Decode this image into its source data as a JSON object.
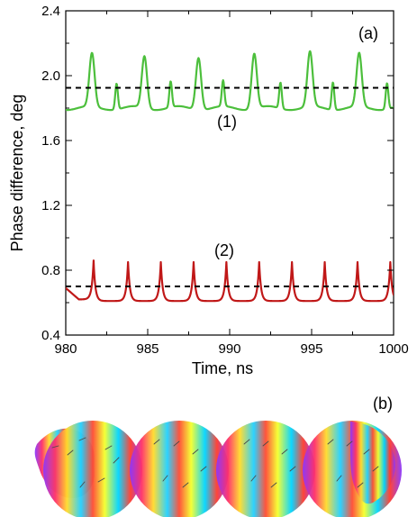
{
  "chart_data": {
    "type": "line",
    "panel_label": "(a)",
    "xlabel": "Time, ns",
    "ylabel": "Phase difference, deg",
    "xlim": [
      980,
      1000
    ],
    "ylim": [
      0.4,
      2.4
    ],
    "x_ticks": [
      980,
      985,
      990,
      995,
      1000
    ],
    "x_tick_labels": [
      "980",
      "985",
      "990",
      "995",
      "1000"
    ],
    "y_ticks": [
      0.4,
      0.8,
      1.2,
      1.6,
      2.0,
      2.4
    ],
    "y_tick_labels": [
      "0.4",
      "0.8",
      "1.2",
      "1.6",
      "2.0",
      "2.4"
    ],
    "grid": false,
    "legend": false,
    "series": [
      {
        "name": "(1)",
        "color": "#4cbf3c",
        "mean_line": 1.925,
        "peaks": [
          {
            "x": 981.6,
            "y": 2.13
          },
          {
            "x": 983.1,
            "y": 1.96
          },
          {
            "x": 984.8,
            "y": 2.12
          },
          {
            "x": 986.4,
            "y": 1.96
          },
          {
            "x": 988.1,
            "y": 2.12
          },
          {
            "x": 989.6,
            "y": 1.96
          },
          {
            "x": 991.5,
            "y": 2.14
          },
          {
            "x": 993.1,
            "y": 1.96
          },
          {
            "x": 994.9,
            "y": 2.14
          },
          {
            "x": 996.3,
            "y": 1.97
          },
          {
            "x": 997.9,
            "y": 2.13
          },
          {
            "x": 999.6,
            "y": 1.96
          }
        ]
      },
      {
        "name": "(2)",
        "color": "#c01818",
        "mean_line": 0.7,
        "peaks": [
          {
            "x": 981.7,
            "y": 0.85
          },
          {
            "x": 983.8,
            "y": 0.85
          },
          {
            "x": 985.8,
            "y": 0.85
          },
          {
            "x": 987.8,
            "y": 0.85
          },
          {
            "x": 989.8,
            "y": 0.85
          },
          {
            "x": 991.8,
            "y": 0.85
          },
          {
            "x": 993.8,
            "y": 0.85
          },
          {
            "x": 995.8,
            "y": 0.85
          },
          {
            "x": 997.8,
            "y": 0.85
          },
          {
            "x": 999.8,
            "y": 0.86
          }
        ]
      }
    ]
  },
  "panel_b": {
    "label": "(b)"
  }
}
